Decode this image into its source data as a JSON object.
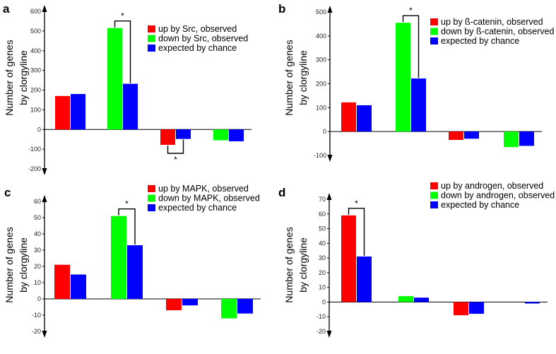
{
  "chart_data": [
    {
      "panel": "a",
      "type": "bar",
      "ylabel": [
        "Number of genes",
        "by clorgyline"
      ],
      "ylim": [
        -200,
        600
      ],
      "yticks": [
        -200,
        -100,
        0,
        100,
        200,
        300,
        400,
        500,
        600
      ],
      "legend": [
        "up by Src, observed",
        "down by Src, observed",
        "expected by chance"
      ],
      "groups": [
        {
          "observed": 170,
          "observed_color": "red",
          "expected": 180
        },
        {
          "observed": 515,
          "observed_color": "green",
          "expected": 232
        },
        {
          "observed": -78,
          "observed_color": "red",
          "expected": -48
        },
        {
          "observed": -55,
          "observed_color": "green",
          "expected": -60
        }
      ],
      "significance": [
        {
          "group": 1,
          "side": "top",
          "label": "*"
        },
        {
          "group": 2,
          "side": "bottom",
          "label": "*"
        }
      ]
    },
    {
      "panel": "b",
      "type": "bar",
      "ylabel": [
        "Number of genes",
        "by clorgyline"
      ],
      "ylim": [
        -100,
        500
      ],
      "yticks": [
        -100,
        0,
        100,
        200,
        300,
        400,
        500
      ],
      "legend": [
        "up by ß-catenin, observed",
        "down by ß-catenin, observed",
        "expected by chance"
      ],
      "groups": [
        {
          "observed": 122,
          "observed_color": "red",
          "expected": 110
        },
        {
          "observed": 455,
          "observed_color": "green",
          "expected": 222
        },
        {
          "observed": -35,
          "observed_color": "red",
          "expected": -30
        },
        {
          "observed": -65,
          "observed_color": "green",
          "expected": -60
        }
      ],
      "significance": [
        {
          "group": 1,
          "side": "top",
          "label": "*"
        }
      ]
    },
    {
      "panel": "c",
      "type": "bar",
      "ylabel": [
        "Number of genes",
        "by clorgyline"
      ],
      "ylim": [
        -20,
        60
      ],
      "yticks": [
        -20,
        -10,
        0,
        10,
        20,
        30,
        40,
        50,
        60
      ],
      "legend": [
        "up by MAPK, observed",
        "down by MAPK, observed",
        "expected by chance"
      ],
      "groups": [
        {
          "observed": 21,
          "observed_color": "red",
          "expected": 15
        },
        {
          "observed": 51,
          "observed_color": "green",
          "expected": 33
        },
        {
          "observed": -7,
          "observed_color": "red",
          "expected": -4
        },
        {
          "observed": -12,
          "observed_color": "green",
          "expected": -9
        }
      ],
      "significance": [
        {
          "group": 1,
          "side": "top",
          "label": "*"
        }
      ]
    },
    {
      "panel": "d",
      "type": "bar",
      "ylabel": [
        "Number of genes",
        "by clorgyline"
      ],
      "ylim": [
        -20,
        70
      ],
      "yticks": [
        -20,
        -10,
        0,
        10,
        20,
        30,
        40,
        50,
        60,
        70
      ],
      "legend": [
        "up by androgen, observed",
        "down by androgen, observed",
        "expected by chance"
      ],
      "groups": [
        {
          "observed": 59,
          "observed_color": "red",
          "expected": 31
        },
        {
          "observed": 4,
          "observed_color": "green",
          "expected": 3
        },
        {
          "observed": -9,
          "observed_color": "red",
          "expected": -8
        },
        {
          "observed": 0,
          "observed_color": "green",
          "expected": -1
        }
      ],
      "significance": [
        {
          "group": 0,
          "side": "top",
          "label": "*"
        }
      ]
    }
  ],
  "colors": {
    "red": "#ff0000",
    "green": "#00ff00",
    "blue": "#0000ff",
    "axis": "#000000"
  }
}
